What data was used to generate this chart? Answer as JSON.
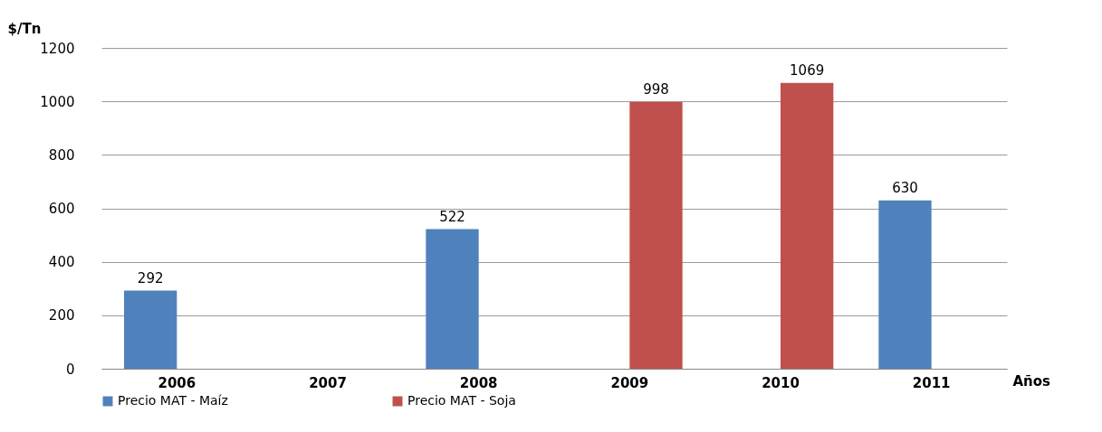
{
  "chart_data": {
    "type": "bar",
    "ylabel": "$/Tn",
    "xlabel": "Años",
    "categories": [
      "2006",
      "2007",
      "2008",
      "2009",
      "2010",
      "2011"
    ],
    "series": [
      {
        "name": "Precio MAT - Maíz",
        "color": "#4f81bd",
        "values": [
          292,
          null,
          522,
          null,
          null,
          630
        ]
      },
      {
        "name": "Precio MAT - Soja",
        "color": "#c0504d",
        "values": [
          null,
          null,
          null,
          998,
          1069,
          null
        ]
      }
    ],
    "ylim": [
      0,
      1200
    ],
    "yticks": [
      0,
      200,
      400,
      600,
      800,
      1000,
      1200
    ],
    "grid": "y",
    "legend": "bottom",
    "data_labels": true
  }
}
